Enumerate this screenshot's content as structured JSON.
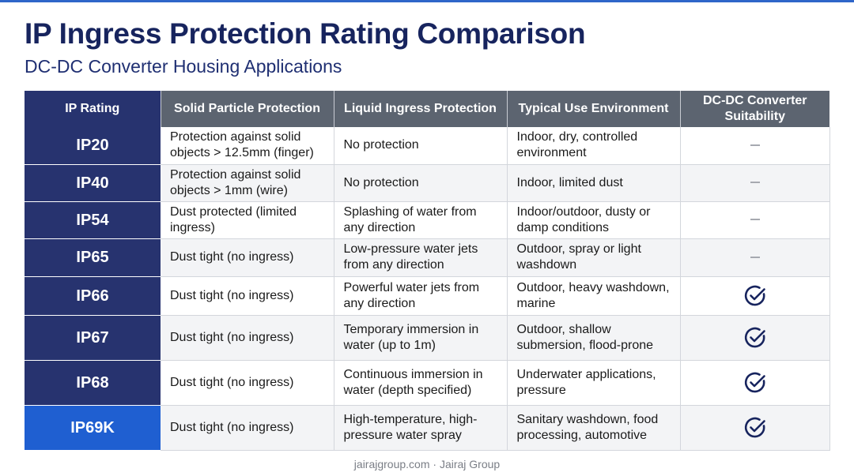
{
  "page": {
    "title": "IP Ingress Protection Rating Comparison",
    "subtitle": "DC-DC Converter Housing Applications",
    "footer": "jairajgroup.com · Jairaj Group"
  },
  "table": {
    "headers": [
      "IP Rating",
      "Solid Particle Protection",
      "Liquid Ingress Protection",
      "Typical Use Environment",
      "DC-DC Converter Suitability"
    ],
    "rows": [
      {
        "rating": "IP20",
        "solid": "Protection against solid objects > 12.5mm (finger)",
        "liquid": "No protection",
        "environment": "Indoor, dry, controlled environment",
        "suitability": "dash"
      },
      {
        "rating": "IP40",
        "solid": "Protection against solid objects > 1mm (wire)",
        "liquid": "No protection",
        "environment": "Indoor, limited dust",
        "suitability": "dash"
      },
      {
        "rating": "IP54",
        "solid": "Dust protected (limited ingress)",
        "liquid": "Splashing of water from any direction",
        "environment": "Indoor/outdoor, dusty or damp conditions",
        "suitability": "dash"
      },
      {
        "rating": "IP65",
        "solid": "Dust tight (no ingress)",
        "liquid": "Low-pressure water jets from any direction",
        "environment": "Outdoor, spray or light washdown",
        "suitability": "dash"
      },
      {
        "rating": "IP66",
        "solid": "Dust tight (no ingress)",
        "liquid": "Powerful water jets from any direction",
        "environment": "Outdoor, heavy washdown, marine",
        "suitability": "check"
      },
      {
        "rating": "IP67",
        "solid": "Dust tight (no ingress)",
        "liquid": "Temporary immersion in water (up to 1m)",
        "environment": "Outdoor, shallow submersion, flood-prone",
        "suitability": "check"
      },
      {
        "rating": "IP68",
        "solid": "Dust tight (no ingress)",
        "liquid": "Continuous immersion in water (depth specified)",
        "environment": "Underwater applications, pressure",
        "suitability": "check"
      },
      {
        "rating": "IP69K",
        "solid": "Dust tight (no ingress)",
        "liquid": "High-temperature, high-pressure water spray",
        "environment": "Sanitary washdown, food processing, automotive",
        "suitability": "check"
      }
    ]
  },
  "colors": {
    "title": "#17245e",
    "rating_cell": "#27336f",
    "rating_highlight": "#1f5fd1",
    "header_bg": "#5c6470",
    "check_icon": "#17245e"
  },
  "icons": {
    "check": "check-circle-icon",
    "dash": "dash-icon"
  }
}
